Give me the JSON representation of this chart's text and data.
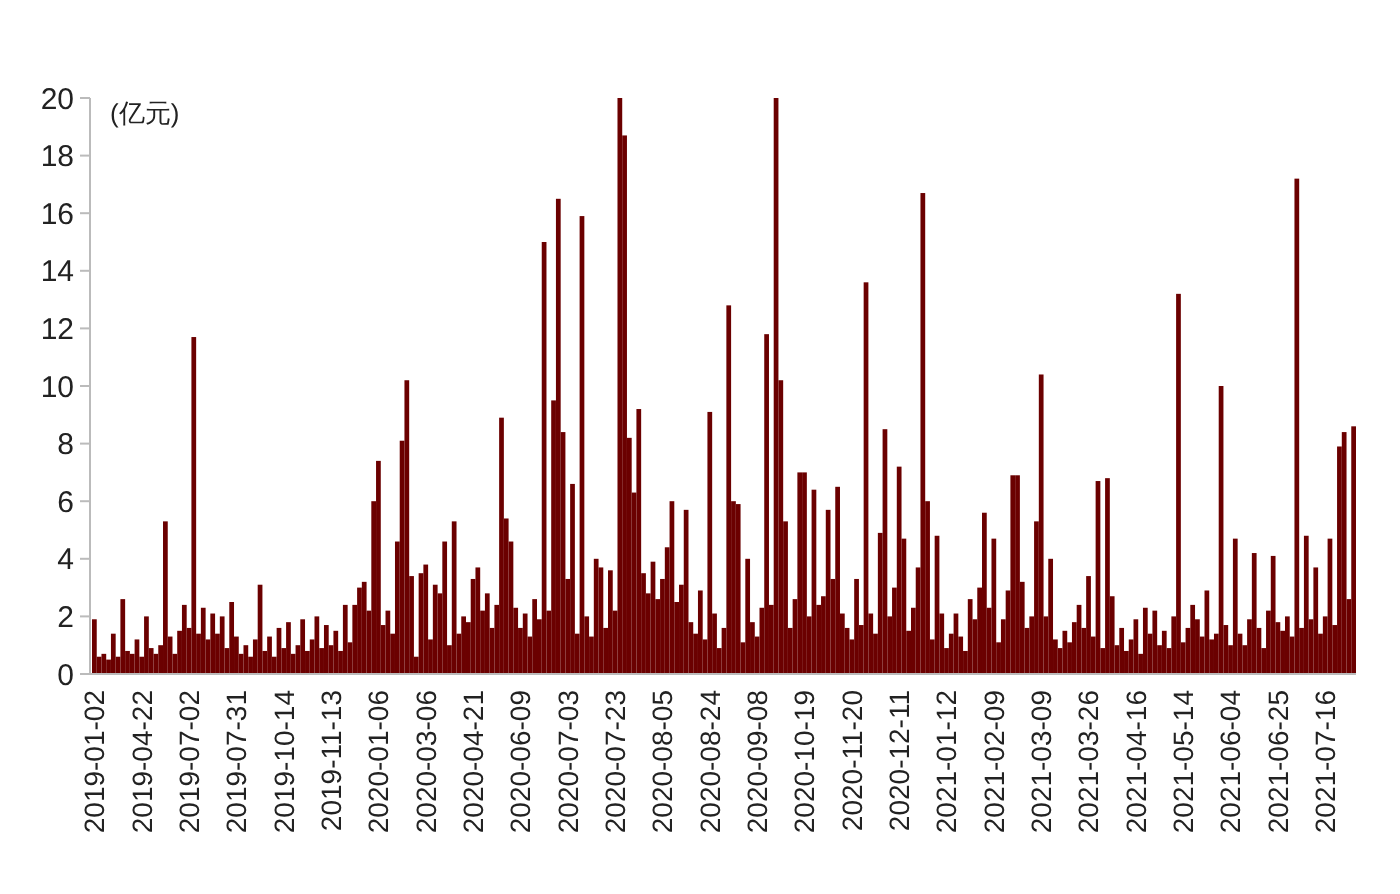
{
  "chart_data": {
    "type": "bar",
    "ylabel": "(亿元)",
    "color": "#6b0000",
    "ylim": [
      0,
      20
    ],
    "yticks": [
      0,
      2,
      4,
      6,
      8,
      10,
      12,
      14,
      16,
      18,
      20
    ],
    "grid": false,
    "categories": [
      "2019-01-02",
      null,
      null,
      null,
      null,
      null,
      null,
      null,
      null,
      null,
      "2019-04-22",
      null,
      null,
      null,
      null,
      null,
      null,
      null,
      null,
      null,
      "2019-07-02",
      null,
      null,
      null,
      null,
      null,
      null,
      null,
      null,
      null,
      "2019-07-31",
      null,
      null,
      null,
      null,
      null,
      null,
      null,
      null,
      null,
      "2019-10-14",
      null,
      null,
      null,
      null,
      null,
      null,
      null,
      null,
      null,
      "2019-11-13",
      null,
      null,
      null,
      null,
      null,
      null,
      null,
      null,
      null,
      "2020-01-06",
      null,
      null,
      null,
      null,
      null,
      null,
      null,
      null,
      null,
      "2020-03-06",
      null,
      null,
      null,
      null,
      null,
      null,
      null,
      null,
      null,
      "2020-04-21",
      null,
      null,
      null,
      null,
      null,
      null,
      null,
      null,
      null,
      "2020-06-09",
      null,
      null,
      null,
      null,
      null,
      null,
      null,
      null,
      null,
      "2020-07-03",
      null,
      null,
      null,
      null,
      null,
      null,
      null,
      null,
      null,
      "2020-07-23",
      null,
      null,
      null,
      null,
      null,
      null,
      null,
      null,
      null,
      "2020-08-05",
      null,
      null,
      null,
      null,
      null,
      null,
      null,
      null,
      null,
      "2020-08-24",
      null,
      null,
      null,
      null,
      null,
      null,
      null,
      null,
      null,
      "2020-09-08",
      null,
      null,
      null,
      null,
      null,
      null,
      null,
      null,
      null,
      "2020-10-19",
      null,
      null,
      null,
      null,
      null,
      null,
      null,
      null,
      null,
      "2020-11-20",
      null,
      null,
      null,
      null,
      null,
      null,
      null,
      null,
      null,
      "2020-12-11",
      null,
      null,
      null,
      null,
      null,
      null,
      null,
      null,
      null,
      "2021-01-12",
      null,
      null,
      null,
      null,
      null,
      null,
      null,
      null,
      null,
      "2021-02-09",
      null,
      null,
      null,
      null,
      null,
      null,
      null,
      null,
      null,
      "2021-03-09",
      null,
      null,
      null,
      null,
      null,
      null,
      null,
      null,
      null,
      "2021-03-26",
      null,
      null,
      null,
      null,
      null,
      null,
      null,
      null,
      null,
      "2021-04-16",
      null,
      null,
      null,
      null,
      null,
      null,
      null,
      null,
      null,
      "2021-05-14",
      null,
      null,
      null,
      null,
      null,
      null,
      null,
      null,
      null,
      "2021-06-04",
      null,
      null,
      null,
      null,
      null,
      null,
      null,
      null,
      null,
      "2021-06-25",
      null,
      null,
      null,
      null,
      null,
      null,
      null,
      null,
      null,
      "2021-07-16",
      null,
      null,
      null,
      null,
      null,
      null
    ],
    "values": [
      1.9,
      0.6,
      0.7,
      0.5,
      1.4,
      0.6,
      2.6,
      0.8,
      0.7,
      1.2,
      0.6,
      2.0,
      0.9,
      0.7,
      1.0,
      5.3,
      1.3,
      0.7,
      1.5,
      2.4,
      1.6,
      11.7,
      1.4,
      2.3,
      1.2,
      2.1,
      1.4,
      2.0,
      0.9,
      2.5,
      1.3,
      0.7,
      1.0,
      0.6,
      1.2,
      3.1,
      0.8,
      1.3,
      0.6,
      1.6,
      0.9,
      1.8,
      0.7,
      1.0,
      1.9,
      0.8,
      1.2,
      2.0,
      0.9,
      1.7,
      1.0,
      1.5,
      0.8,
      2.4,
      1.1,
      2.4,
      3.0,
      3.2,
      2.2,
      6.0,
      7.4,
      1.7,
      2.2,
      1.4,
      4.6,
      8.1,
      10.2,
      3.4,
      0.6,
      3.5,
      3.8,
      1.2,
      3.1,
      2.8,
      4.6,
      1.0,
      5.3,
      1.4,
      2.0,
      1.8,
      3.3,
      3.7,
      2.2,
      2.8,
      1.6,
      2.4,
      8.9,
      5.4,
      4.6,
      2.3,
      1.6,
      2.1,
      1.3,
      2.6,
      1.9,
      15.0,
      2.2,
      9.5,
      16.5,
      8.4,
      3.3,
      6.6,
      1.4,
      15.9,
      2.0,
      1.3,
      4.0,
      3.7,
      1.6,
      3.6,
      2.2,
      20.0,
      18.7,
      8.2,
      6.3,
      9.2,
      3.5,
      2.8,
      3.9,
      2.6,
      3.3,
      4.4,
      6.0,
      2.5,
      3.1,
      5.7,
      1.8,
      1.4,
      2.9,
      1.2,
      9.1,
      2.1,
      0.9,
      1.6,
      12.8,
      6.0,
      5.9,
      1.1,
      4.0,
      1.8,
      1.3,
      2.3,
      11.8,
      2.4,
      20.0,
      10.2,
      5.3,
      1.6,
      2.6,
      7.0,
      7.0,
      2.0,
      6.4,
      2.4,
      2.7,
      5.7,
      3.3,
      6.5,
      2.1,
      1.6,
      1.2,
      3.3,
      1.7,
      13.6,
      2.1,
      1.4,
      4.9,
      8.5,
      2.0,
      3.0,
      7.2,
      4.7,
      1.5,
      2.3,
      3.7,
      16.7,
      6.0,
      1.2,
      4.8,
      2.1,
      0.9,
      1.4,
      2.1,
      1.3,
      0.8,
      2.6,
      1.9,
      3.0,
      5.6,
      2.3,
      4.7,
      1.1,
      1.9,
      2.9,
      6.9,
      6.9,
      3.2,
      1.6,
      2.0,
      5.3,
      10.4,
      2.0,
      4.0,
      1.2,
      0.9,
      1.5,
      1.1,
      1.8,
      2.4,
      1.6,
      3.4,
      1.3,
      6.7,
      0.9,
      6.8,
      2.7,
      1.0,
      1.6,
      0.8,
      1.2,
      1.9,
      0.7,
      2.3,
      1.4,
      2.2,
      1.0,
      1.5,
      0.9,
      2.0,
      13.2,
      1.1,
      1.6,
      2.4,
      1.9,
      1.3,
      2.9,
      1.2,
      1.4,
      10.0,
      1.7,
      1.0,
      4.7,
      1.4,
      1.0,
      1.9,
      4.2,
      1.6,
      0.9,
      2.2,
      4.1,
      1.8,
      1.5,
      2.0,
      1.3,
      17.2,
      1.6,
      4.8,
      1.9,
      3.7,
      1.4,
      2.0,
      4.7,
      1.7,
      7.9,
      8.4,
      2.6,
      8.6
    ]
  }
}
